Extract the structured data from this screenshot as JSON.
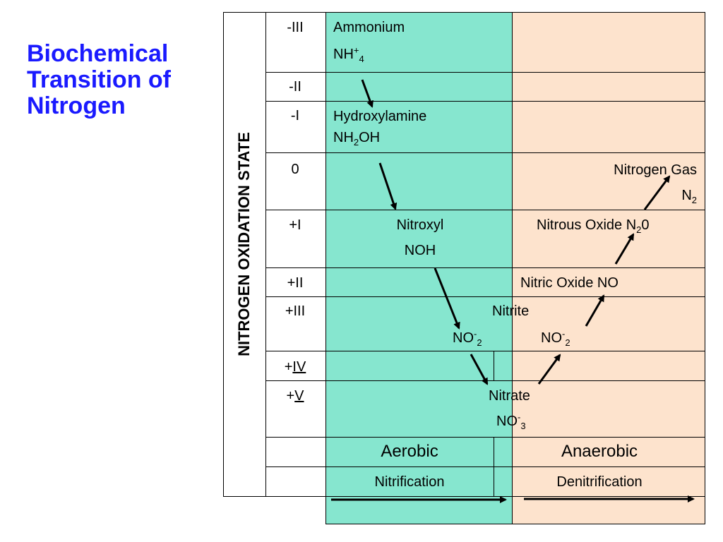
{
  "title": "Biochemical Transition of Nitrogen",
  "axis_label": "NITROGEN OXIDATION STATE",
  "states": [
    "-III",
    "-II",
    "-I",
    "0",
    "+I",
    "+II",
    "+III",
    "+IV",
    "+V"
  ],
  "species": {
    "ammonium": {
      "name": "Ammonium",
      "formula_base": "NH",
      "formula_sup": "+",
      "formula_sub": "4"
    },
    "hydroxylamine": {
      "name": "Hydroxylamine",
      "formula_pre": "NH",
      "formula_sub": "2",
      "formula_post": "OH"
    },
    "nitrogen_gas": {
      "name": "Nitrogen Gas",
      "formula_base": "N",
      "formula_sub": "2"
    },
    "nitroxyl": {
      "name": "Nitroxyl",
      "formula": "NOH"
    },
    "nitrous_oxide": {
      "name": "Nitrous Oxide N",
      "formula_sub": "2",
      "formula_post": "0"
    },
    "nitric_oxide": {
      "name": "Nitric Oxide NO"
    },
    "nitrite": {
      "name": "Nitrite",
      "formula_base": "NO",
      "formula_sup": "-",
      "formula_sub": "2"
    },
    "nitrate": {
      "name": "Nitrate",
      "formula_base": "NO",
      "formula_sup": "-",
      "formula_sub": "3"
    }
  },
  "conditions": {
    "aerobic": "Aerobic",
    "anaerobic": "Anaerobic"
  },
  "processes": {
    "nitrification": "Nitrification",
    "denitrification": "Denitrification"
  },
  "colors": {
    "aerobic_zone": "#86e6cf",
    "anaerobic_zone": "#fde3cd",
    "title": "#1a1aff"
  }
}
